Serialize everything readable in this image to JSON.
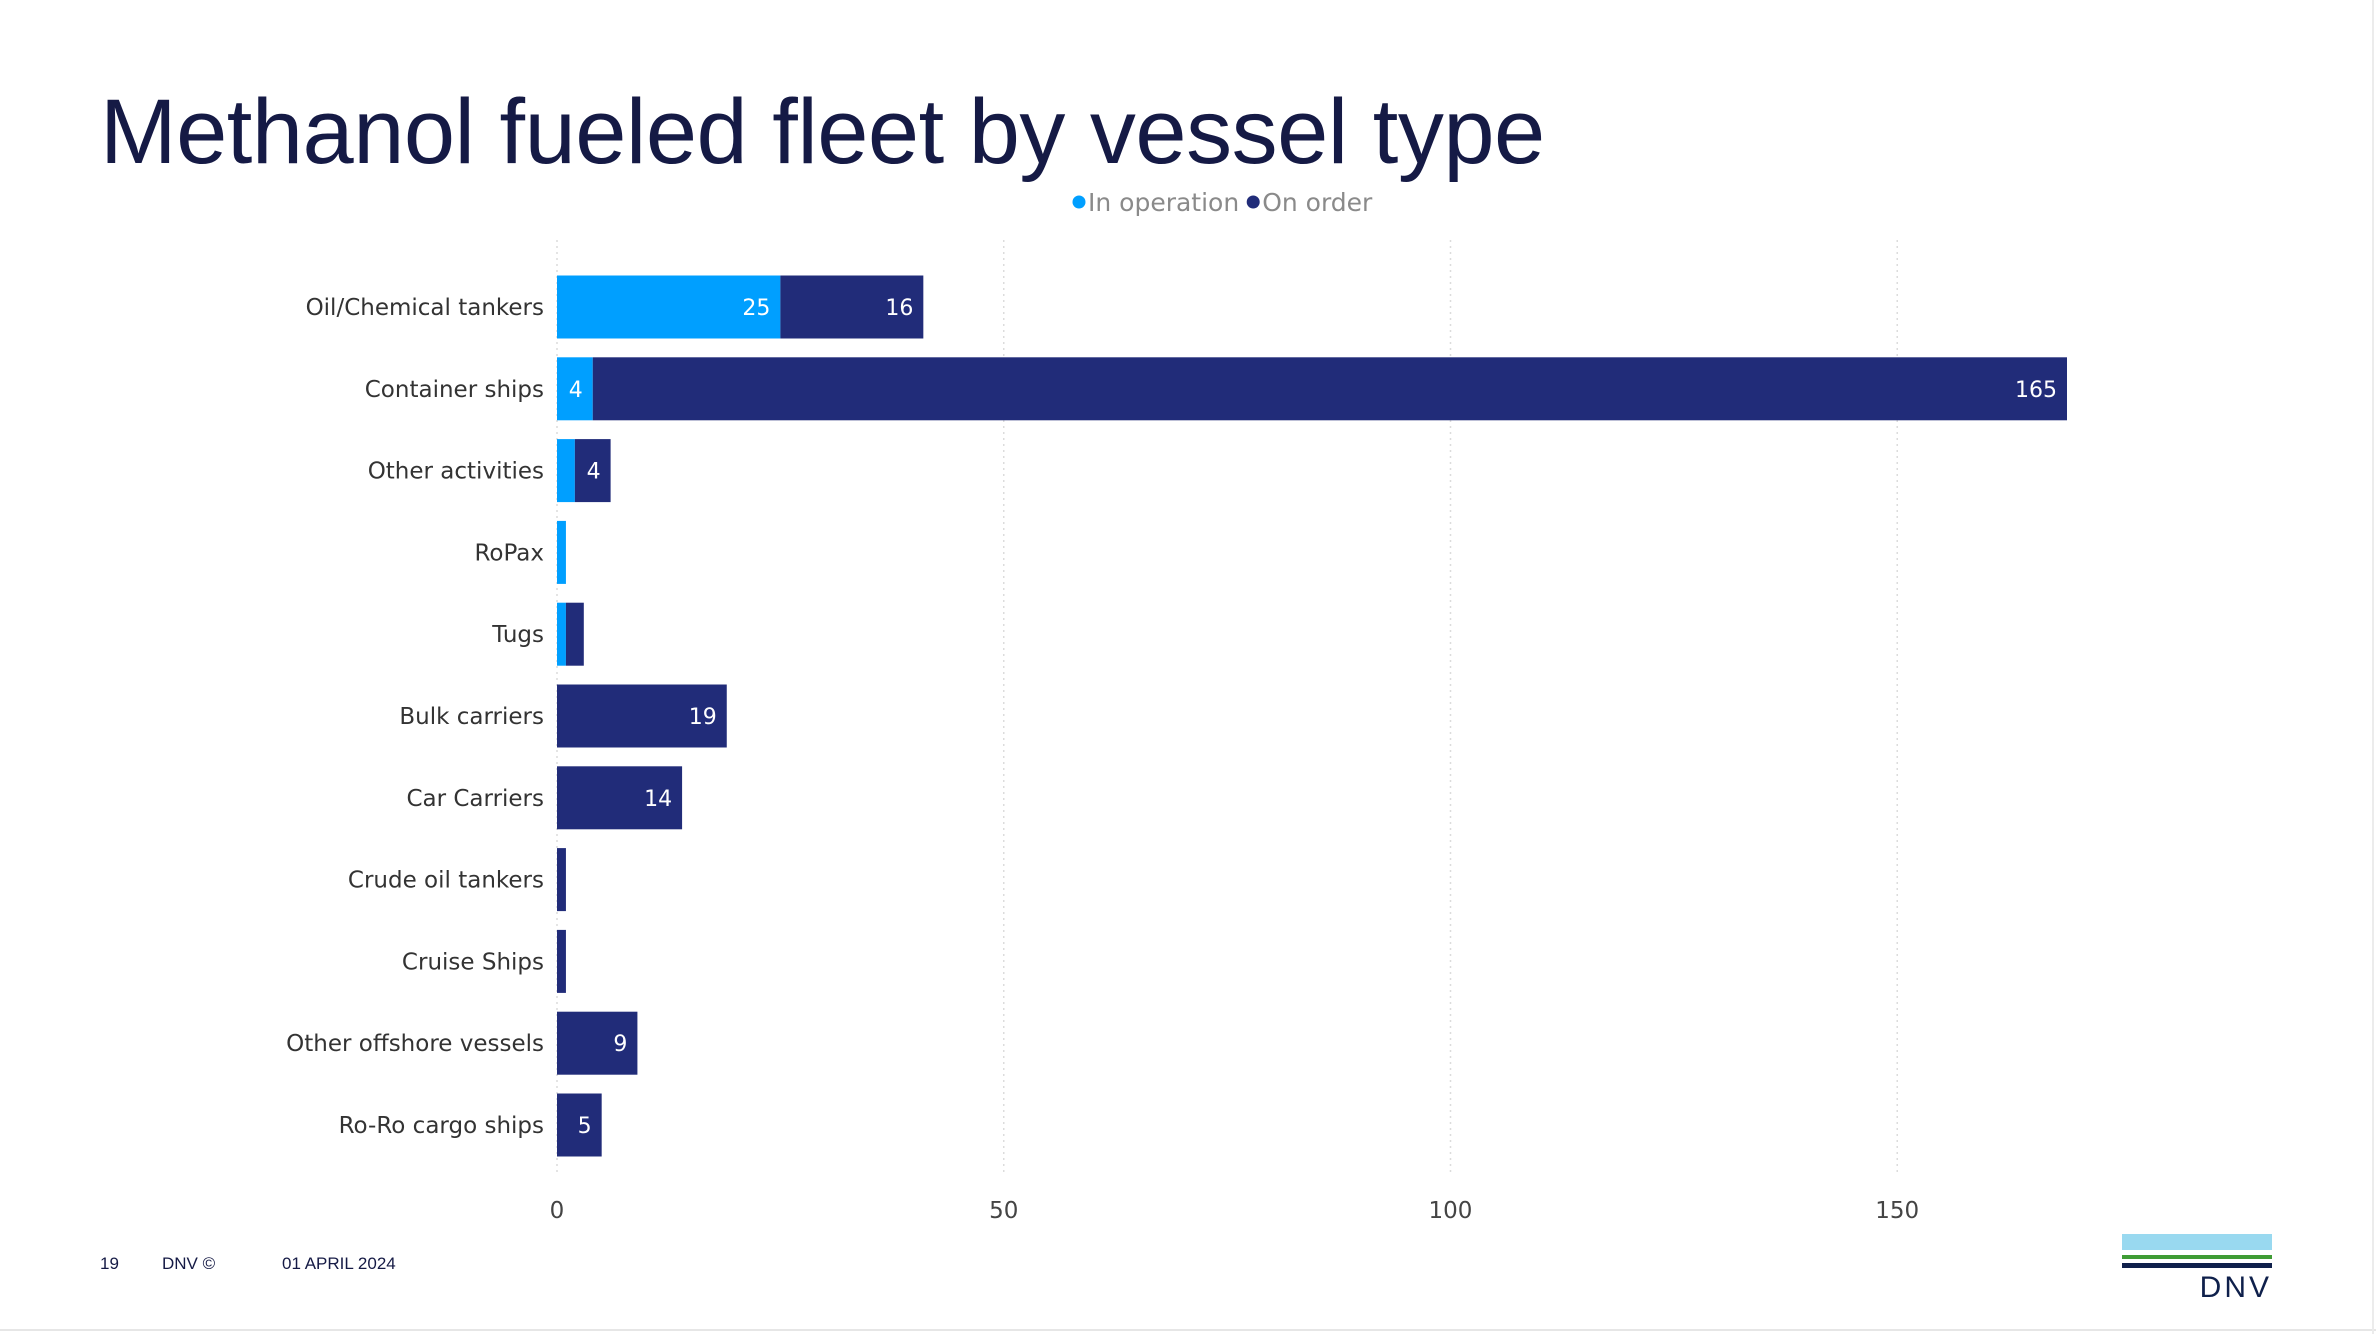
{
  "title": "Methanol fueled fleet by vessel type",
  "footer": {
    "page_number": "19",
    "copyright": "DNV ©",
    "date": "01 APRIL 2024"
  },
  "logo": {
    "text": "DNV",
    "colors": {
      "light": "#99d9f0",
      "green": "#3f9c35",
      "navy": "#0f204b"
    }
  },
  "chart_data": {
    "type": "bar",
    "orientation": "horizontal",
    "stacked": true,
    "categories": [
      "Oil/Chemical tankers",
      "Container ships",
      "Other activities",
      "RoPax",
      "Tugs",
      "Bulk carriers",
      "Car Carriers",
      "Crude oil tankers",
      "Cruise Ships",
      "Other offshore vessels",
      "Ro-Ro cargo ships"
    ],
    "series": [
      {
        "name": "In operation",
        "color": "#009fff",
        "values": [
          25,
          4,
          2,
          1,
          1,
          0,
          0,
          0,
          0,
          0,
          0
        ],
        "labels": [
          "25",
          "4",
          "",
          "",
          "",
          "",
          "",
          "",
          "",
          "",
          ""
        ]
      },
      {
        "name": "On order",
        "color": "#212c79",
        "values": [
          16,
          165,
          4,
          0,
          2,
          19,
          14,
          1,
          1,
          9,
          5
        ],
        "labels": [
          "16",
          "165",
          "4",
          "",
          "",
          "19",
          "14",
          "",
          "",
          "9",
          "5"
        ]
      }
    ],
    "xlim": [
      0,
      169
    ],
    "xticks": [
      0,
      50,
      100,
      150
    ],
    "grid": true,
    "legend_position": "top-center"
  }
}
